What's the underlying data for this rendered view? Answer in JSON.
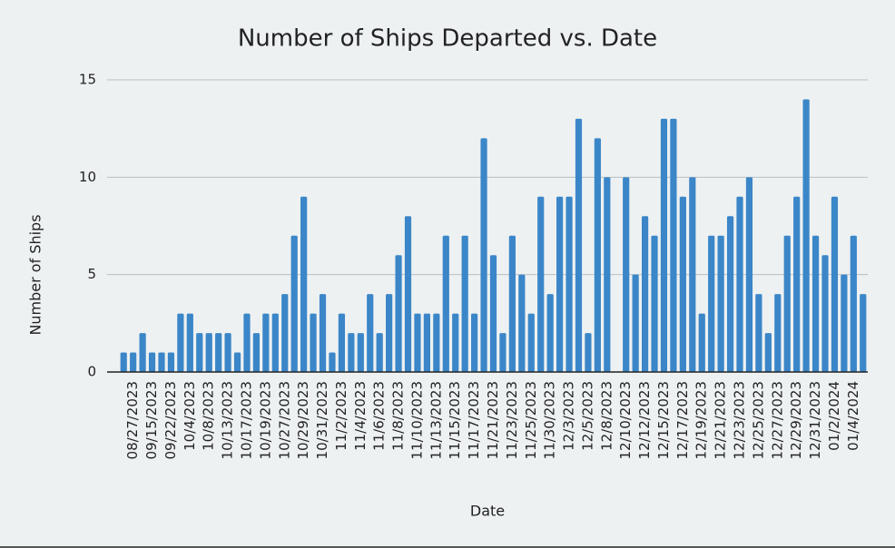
{
  "chart_data": {
    "type": "bar",
    "title": "Number of Ships Departed vs. Date",
    "x_label": "Date",
    "y_label": "Number of Ships",
    "categories": [
      null,
      "08/27/2023",
      null,
      "09/15/2023",
      null,
      "09/22/2023",
      null,
      "10/4/2023",
      null,
      "10/8/2023",
      null,
      "10/13/2023",
      null,
      "10/17/2023",
      null,
      "10/19/2023",
      null,
      "10/27/2023",
      null,
      "10/29/2023",
      null,
      "10/31/2023",
      null,
      "11/2/2023",
      null,
      "11/4/2023",
      null,
      "11/6/2023",
      null,
      "11/8/2023",
      null,
      "11/10/2023",
      null,
      "11/13/2023",
      null,
      "11/15/2023",
      null,
      "11/17/2023",
      null,
      "11/21/2023",
      null,
      "11/23/2023",
      null,
      "11/25/2023",
      null,
      "11/30/2023",
      null,
      "12/3/2023",
      null,
      "12/5/2023",
      null,
      "12/8/2023",
      null,
      "12/10/2023",
      null,
      "12/12/2023",
      null,
      "12/15/2023",
      null,
      "12/17/2023",
      null,
      "12/19/2023",
      null,
      "12/21/2023",
      null,
      "12/23/2023",
      null,
      "12/25/2023",
      null,
      "12/27/2023",
      null,
      "12/29/2023",
      null,
      "12/31/2023",
      null,
      "01/2/2024",
      null,
      "01/4/2024",
      null
    ],
    "values": [
      1,
      1,
      2,
      1,
      1,
      1,
      3,
      3,
      2,
      2,
      2,
      2,
      1,
      3,
      2,
      3,
      3,
      4,
      7,
      9,
      3,
      4,
      1,
      3,
      2,
      2,
      4,
      2,
      4,
      6,
      8,
      3,
      3,
      3,
      7,
      3,
      7,
      3,
      12,
      6,
      2,
      7,
      5,
      3,
      9,
      4,
      9,
      9,
      13,
      2,
      12,
      10,
      0,
      10,
      5,
      8,
      7,
      13,
      13,
      9,
      10,
      3,
      7,
      7,
      8,
      9,
      10,
      4,
      2,
      4,
      7,
      9,
      14,
      7,
      6,
      9,
      5,
      7,
      4
    ],
    "color": "#3b86c8",
    "ylim": [
      0,
      15
    ],
    "yticks": [
      0,
      5,
      10,
      15
    ],
    "grid": true
  }
}
